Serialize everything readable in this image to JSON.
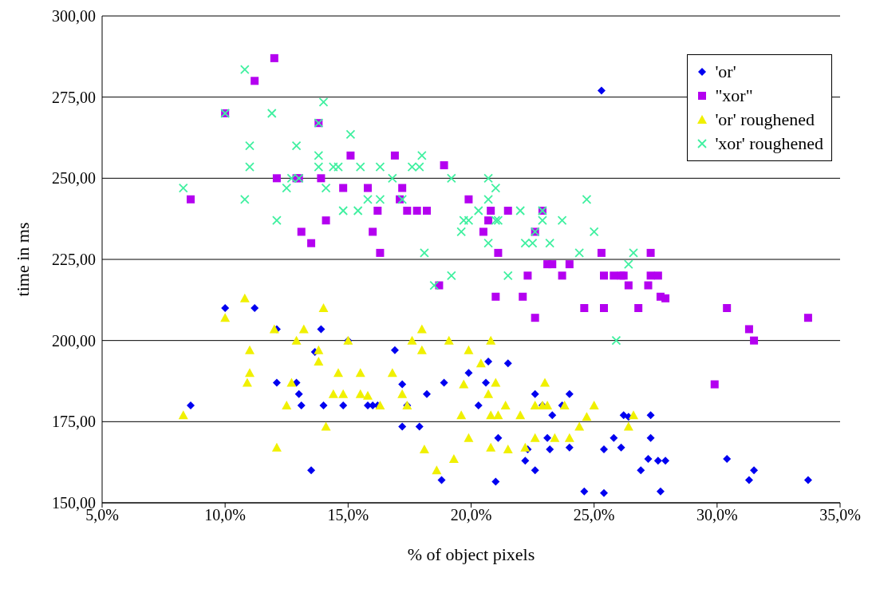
{
  "chart_data": {
    "type": "scatter",
    "xlabel": "% of object pixels",
    "ylabel": "time in ms",
    "xlim": [
      5,
      35
    ],
    "xticks": [
      {
        "value": 5,
        "label": "5,0%"
      },
      {
        "value": 10,
        "label": "10,0%"
      },
      {
        "value": 15,
        "label": "15,0%"
      },
      {
        "value": 20,
        "label": "20,0%"
      },
      {
        "value": 25,
        "label": "25,0%"
      },
      {
        "value": 30,
        "label": "30,0%"
      },
      {
        "value": 35,
        "label": "35,0%"
      }
    ],
    "ylim": [
      150,
      300
    ],
    "yticks": [
      {
        "value": 150,
        "label": "150,00"
      },
      {
        "value": 175,
        "label": "175,00"
      },
      {
        "value": 200,
        "label": "200,00"
      },
      {
        "value": 225,
        "label": "225,00"
      },
      {
        "value": 250,
        "label": "250,00"
      },
      {
        "value": 275,
        "label": "275,00"
      },
      {
        "value": 300,
        "label": "300,00"
      }
    ],
    "grid": "y",
    "legend": "top right",
    "series": [
      {
        "name": "'or'",
        "color": "#0000f0",
        "marker": "diamond",
        "x": [
          10.0,
          11.2,
          8.6,
          12.1,
          12.1,
          12.9,
          13.0,
          13.1,
          13.5,
          13.65,
          13.9,
          14.0,
          14.8,
          15.0,
          15.8,
          16.0,
          16.2,
          16.9,
          17.2,
          17.2,
          17.4,
          17.9,
          18.2,
          18.8,
          18.9,
          19.9,
          20.3,
          20.6,
          20.7,
          21.0,
          21.1,
          21.5,
          22.2,
          22.3,
          22.6,
          22.6,
          22.9,
          23.1,
          23.2,
          23.3,
          23.7,
          24.0,
          24.0,
          24.6,
          25.3,
          25.4,
          25.4,
          25.8,
          26.1,
          26.2,
          26.4,
          26.9,
          27.2,
          27.3,
          27.3,
          27.6,
          27.7,
          27.9,
          30.4,
          31.3,
          31.5,
          33.7
        ],
        "values": [
          210,
          210,
          180,
          203.5,
          187,
          187,
          183.5,
          180,
          160,
          196.5,
          203.5,
          180,
          180,
          200,
          180,
          180,
          180,
          197,
          186.5,
          173.5,
          180,
          173.5,
          183.5,
          157,
          187,
          190,
          180,
          187,
          193.5,
          156.5,
          170,
          193,
          163,
          166.5,
          160,
          183.5,
          180,
          170,
          166.5,
          177,
          180,
          167,
          183.5,
          153.5,
          277,
          153,
          166.5,
          170,
          167,
          177,
          176.5,
          160,
          163.5,
          170,
          177,
          163,
          153.5,
          163,
          163.5,
          157,
          160,
          157
        ]
      },
      {
        "name": "\"xor\"",
        "color": "#b400f0",
        "marker": "square",
        "x": [
          8.6,
          10.0,
          11.2,
          12.0,
          12.1,
          12.9,
          13.0,
          13.1,
          13.5,
          13.8,
          13.9,
          14.1,
          14.8,
          15.1,
          15.8,
          16.0,
          16.2,
          16.3,
          16.9,
          17.1,
          17.2,
          17.4,
          17.8,
          18.2,
          18.7,
          18.9,
          19.9,
          20.5,
          20.7,
          20.8,
          21.0,
          21.1,
          21.5,
          22.1,
          22.3,
          22.6,
          22.6,
          22.9,
          23.1,
          23.3,
          23.7,
          24.0,
          24.6,
          25.3,
          25.4,
          25.4,
          25.8,
          26.1,
          26.2,
          26.4,
          26.8,
          27.2,
          27.3,
          27.3,
          27.6,
          27.7,
          27.9,
          29.9,
          30.4,
          31.3,
          31.5,
          33.7
        ],
        "values": [
          243.5,
          270,
          280,
          287,
          250,
          250,
          250,
          233.5,
          230,
          267,
          250,
          237,
          247,
          257,
          247,
          233.5,
          240,
          227,
          257,
          243.5,
          247,
          240,
          240,
          240,
          217,
          254,
          243.5,
          233.5,
          237,
          240,
          213.5,
          227,
          240,
          213.5,
          220,
          233.5,
          207,
          240,
          223.5,
          223.5,
          220,
          223.5,
          210,
          227,
          210,
          220,
          220,
          220,
          220,
          217,
          210,
          217,
          220,
          227,
          220,
          213.5,
          213,
          186.5,
          210,
          203.5,
          200,
          207
        ]
      },
      {
        "name": "'or' roughened",
        "color": "#f0f000",
        "marker": "triangle",
        "x": [
          8.3,
          10.0,
          10.8,
          10.9,
          11.0,
          11.0,
          12.0,
          12.1,
          12.5,
          12.7,
          12.9,
          13.2,
          13.8,
          13.8,
          14.0,
          14.1,
          14.4,
          14.6,
          14.8,
          15.0,
          15.5,
          15.5,
          15.8,
          16.3,
          16.8,
          17.2,
          17.4,
          17.6,
          18.0,
          18.0,
          18.1,
          18.6,
          19.1,
          19.3,
          19.6,
          19.7,
          19.9,
          19.9,
          20.4,
          20.7,
          20.8,
          20.8,
          20.8,
          21.0,
          21.1,
          21.4,
          21.5,
          22.0,
          22.2,
          22.6,
          22.6,
          22.9,
          23.0,
          23.1,
          23.4,
          23.8,
          24.0,
          24.4,
          24.7,
          25.0,
          26.4,
          26.6
        ],
        "values": [
          177,
          207,
          213,
          187,
          197,
          190,
          203.5,
          167,
          180,
          187,
          200,
          203.5,
          193.5,
          197,
          210,
          173.5,
          183.5,
          190,
          183.5,
          200,
          183.5,
          190,
          183,
          180,
          190,
          183.5,
          180,
          200,
          203.5,
          197,
          166.5,
          160,
          200,
          163.5,
          177,
          186.5,
          170,
          197,
          193,
          183.5,
          200,
          167,
          177,
          187,
          177,
          180,
          166.5,
          177,
          167,
          170,
          180,
          180,
          187,
          180,
          170,
          180,
          170,
          173.5,
          176.5,
          180,
          173.5,
          177
        ]
      },
      {
        "name": "'xor' roughened",
        "color": "#40f0a0",
        "marker": "cross",
        "x": [
          8.3,
          10.0,
          10.8,
          10.8,
          11.0,
          11.0,
          11.9,
          12.1,
          12.5,
          12.7,
          12.9,
          13.0,
          13.8,
          13.8,
          13.8,
          14.0,
          14.1,
          14.4,
          14.6,
          14.8,
          15.1,
          15.4,
          15.5,
          15.8,
          16.3,
          16.3,
          16.8,
          17.2,
          17.6,
          17.9,
          18.0,
          18.1,
          18.5,
          19.2,
          19.2,
          19.6,
          19.7,
          19.9,
          20.3,
          20.7,
          20.7,
          20.7,
          21.0,
          21.0,
          21.1,
          21.5,
          22.0,
          22.2,
          22.5,
          22.6,
          22.9,
          22.9,
          23.2,
          23.7,
          24.4,
          24.7,
          25.0,
          25.9,
          26.4,
          26.6
        ],
        "values": [
          247,
          270,
          283.5,
          243.5,
          260,
          253.5,
          270,
          237,
          247,
          250,
          260,
          250,
          267,
          257,
          253.5,
          273.5,
          247,
          253.5,
          253.5,
          240,
          263.5,
          240,
          253.5,
          243.5,
          253.5,
          243.5,
          250,
          243.5,
          253.5,
          253.5,
          257,
          227,
          217,
          220,
          250,
          233.5,
          237,
          237,
          240,
          250,
          243.5,
          230,
          247,
          237,
          237,
          220,
          240,
          230,
          230,
          233.5,
          237,
          240,
          230,
          237,
          227,
          243.5,
          233.5,
          200,
          223.5,
          227
        ]
      }
    ]
  }
}
